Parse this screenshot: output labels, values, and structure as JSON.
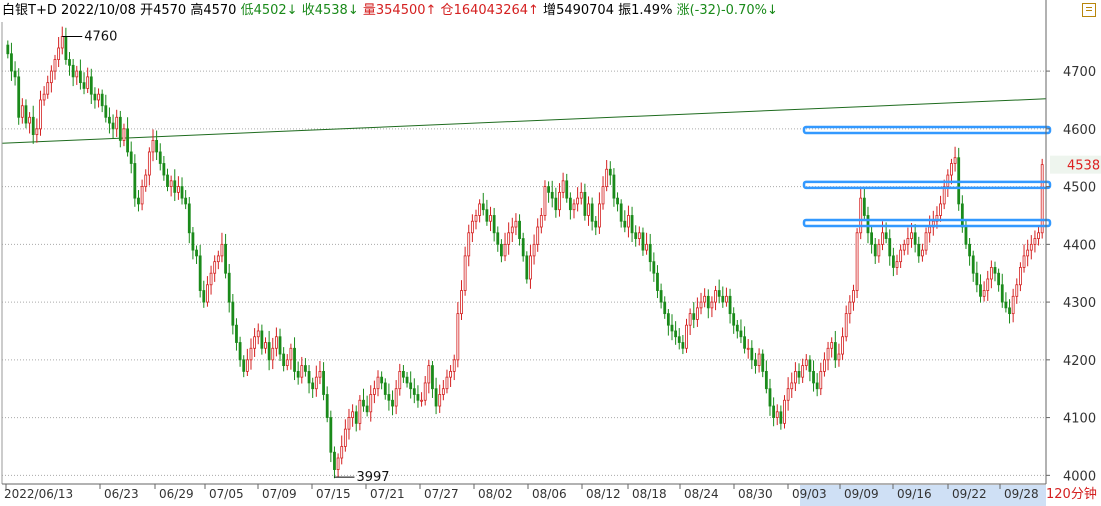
{
  "header": {
    "name": "白银T+D",
    "date": "2022/10/08",
    "open_label": "开",
    "open": "4570",
    "high_label": "高",
    "high": "4570",
    "low_label": "低",
    "low": "4502↓",
    "close_label": "收",
    "close": "4538↓",
    "volume_label": "量",
    "volume": "354500↑",
    "position_label": "仓",
    "position": "164043264↑",
    "increase_label": "增",
    "increase": "5490704",
    "amplitude_label": "振",
    "amplitude": "1.49%",
    "change_label": "涨",
    "change": "(-32)-0.70%↓"
  },
  "period_label": "120分钟",
  "colors": {
    "up": "#d42020",
    "down": "#1a8a1a",
    "line": "#1e6b1e",
    "hline": "#3399ff",
    "price_tag": "#dd2222"
  },
  "chart_data": {
    "type": "candlestick",
    "ylim": [
      3985,
      4785
    ],
    "yticks": [
      "4700",
      "4600",
      "4500",
      "4400",
      "4300",
      "4200",
      "4100",
      "4000"
    ],
    "xticks": [
      "2022/06/13",
      "06/23",
      "06/29",
      "07/05",
      "07/09",
      "07/15",
      "07/21",
      "07/27",
      "08/02",
      "08/06",
      "08/12",
      "08/18",
      "08/24",
      "08/30",
      "09/03",
      "09/09",
      "09/16",
      "09/22",
      "09/28"
    ],
    "last_price": "4538",
    "annotations": [
      {
        "text": "4760",
        "y": 4760
      },
      {
        "text": "3997",
        "y": 3997
      }
    ],
    "horizontal_lines": [
      4598,
      4503,
      4437
    ],
    "trend_line": {
      "from": 4575,
      "to": 4652
    },
    "closes": [
      4730,
      4700,
      4690,
      4620,
      4640,
      4610,
      4620,
      4590,
      4600,
      4650,
      4660,
      4680,
      4700,
      4720,
      4740,
      4760,
      4720,
      4710,
      4690,
      4700,
      4680,
      4670,
      4690,
      4660,
      4650,
      4660,
      4640,
      4620,
      4610,
      4600,
      4620,
      4580,
      4600,
      4560,
      4540,
      4480,
      4470,
      4500,
      4520,
      4560,
      4580,
      4560,
      4540,
      4520,
      4500,
      4510,
      4490,
      4500,
      4480,
      4470,
      4420,
      4390,
      4380,
      4320,
      4300,
      4330,
      4350,
      4370,
      4380,
      4400,
      4350,
      4300,
      4260,
      4230,
      4200,
      4180,
      4200,
      4220,
      4240,
      4250,
      4220,
      4230,
      4200,
      4220,
      4240,
      4210,
      4190,
      4200,
      4220,
      4180,
      4170,
      4190,
      4180,
      4160,
      4150,
      4170,
      4180,
      4140,
      4100,
      4040,
      4010,
      4030,
      4050,
      4080,
      4100,
      4110,
      4090,
      4130,
      4120,
      4110,
      4140,
      4150,
      4170,
      4160,
      4140,
      4130,
      4120,
      4150,
      4180,
      4170,
      4160,
      4150,
      4140,
      4130,
      4130,
      4160,
      4190,
      4150,
      4120,
      4140,
      4150,
      4170,
      4180,
      4200,
      4280,
      4320,
      4380,
      4420,
      4440,
      4450,
      4470,
      4460,
      4440,
      4450,
      4420,
      4400,
      4380,
      4400,
      4420,
      4430,
      4440,
      4410,
      4380,
      4340,
      4380,
      4400,
      4430,
      4450,
      4500,
      4490,
      4480,
      4460,
      4490,
      4510,
      4480,
      4460,
      4470,
      4480,
      4490,
      4450,
      4470,
      4440,
      4430,
      4470,
      4500,
      4530,
      4520,
      4480,
      4470,
      4440,
      4430,
      4450,
      4420,
      4410,
      4420,
      4390,
      4400,
      4370,
      4350,
      4320,
      4300,
      4280,
      4260,
      4250,
      4240,
      4230,
      4220,
      4260,
      4280,
      4270,
      4290,
      4300,
      4310,
      4290,
      4300,
      4320,
      4310,
      4300,
      4310,
      4280,
      4260,
      4250,
      4240,
      4220,
      4220,
      4200,
      4190,
      4210,
      4180,
      4150,
      4120,
      4100,
      4110,
      4090,
      4130,
      4150,
      4160,
      4180,
      4170,
      4190,
      4200,
      4180,
      4160,
      4150,
      4180,
      4200,
      4220,
      4230,
      4200,
      4210,
      4240,
      4280,
      4300,
      4320,
      4420,
      4480,
      4450,
      4420,
      4400,
      4380,
      4400,
      4420,
      4410,
      4380,
      4360,
      4370,
      4390,
      4400,
      4410,
      4420,
      4400,
      4380,
      4390,
      4420,
      4430,
      4440,
      4450,
      4470,
      4500,
      4520,
      4540,
      4550,
      4470,
      4430,
      4400,
      4380,
      4350,
      4330,
      4310,
      4320,
      4340,
      4360,
      4350,
      4330,
      4300,
      4290,
      4280,
      4310,
      4330,
      4360,
      4380,
      4390,
      4400,
      4410,
      4420,
      4538
    ]
  }
}
